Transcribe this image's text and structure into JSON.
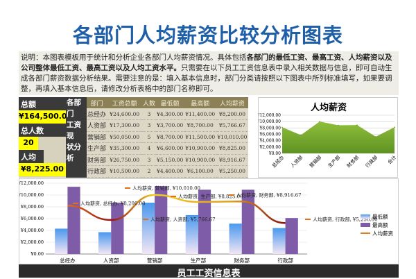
{
  "title": "各部门人均薪资比较分析图表",
  "description": {
    "p1": "说明：本图表模板用于统计和分析企业各部门人均薪资情况。具体包括",
    "b1": "各部门的最低工资、最高工资、人均薪资以及公司整体最低工资、最高工资以及人均工资水平。",
    "p2": "只需要在以下员工工资信息表中录入相关数据与信息，即可自动生成各部门薪资数据分析结果。需要注意的是：填入基本信息时，部门分类请按照以下图表中所列标准填写，如果要调整，再填入基本信息后，请修改分析表格中的部门名称即可。"
  },
  "summary": {
    "total_label": "总额",
    "total_value": "¥164,500.00",
    "count_label": "总人数",
    "count_value": "20",
    "avg_label": "人均",
    "avg_value": "¥8,225.00"
  },
  "side_label": [
    "各部门",
    "工资现",
    "状分析"
  ],
  "table": {
    "headers": [
      "部门",
      "工资总额",
      "人数",
      "最低额",
      "最高额",
      "人均薪资"
    ],
    "rows": [
      [
        "总经办",
        "¥24,600.00",
        "3",
        "¥4,300.00",
        "¥11,400.00",
        "¥8,200.00"
      ],
      [
        "人资部",
        "¥17,300.00",
        "3",
        "¥3,700.00",
        "¥8,700.00",
        "¥5,766.67"
      ],
      [
        "营销部",
        "¥50,050.00",
        "5",
        "¥8,700.00",
        "¥11,500.00",
        "¥10,010.00"
      ],
      [
        "生产部",
        "¥35,300.00",
        "4",
        "¥6,600.00",
        "¥10,900.00",
        "¥8,825.00"
      ],
      [
        "财务部",
        "¥26,750.00",
        "3",
        "¥5,150.00",
        "¥10,900.00",
        "¥8,916.67"
      ],
      [
        "行政部",
        "¥10,500.00",
        "2",
        "¥4,400.00",
        "¥6,100.00",
        "¥5,250.00"
      ],
      [
        "合计",
        "¥164,500.00",
        "20",
        "¥3,700.00",
        "¥11,500.00",
        "¥8,225.00"
      ]
    ]
  },
  "footer": "员工工资信息表",
  "chart_data": [
    {
      "type": "area",
      "title": "人均薪资",
      "categories": [
        "总经办",
        "人资部",
        "营销部",
        "生产部",
        "财务部",
        "行政部",
        "合计"
      ],
      "values": [
        8200,
        5766.67,
        10010,
        8825,
        8916.67,
        5250,
        8225
      ],
      "ylim": [
        0,
        12000
      ],
      "yticks": [
        "¥0.00",
        "¥2,000.00",
        "¥4,000.00",
        "¥6,000.00",
        "¥8,000.00",
        "¥10,000.00",
        "¥12,000.00"
      ],
      "grid": true,
      "color": "#7cae2e"
    },
    {
      "type": "bar+line",
      "categories": [
        "总经办",
        "人资部",
        "营销部",
        "生产部",
        "财务部",
        "行政部"
      ],
      "ylim": [
        0,
        12000
      ],
      "yticks": [
        "¥0.00",
        "¥2,000.00",
        "¥4,000.00",
        "¥6,000.00",
        "¥8,000.00",
        "¥10,000.00",
        "¥12,000.00"
      ],
      "grid": true,
      "legend": "right",
      "series": [
        {
          "name": "最低额",
          "type": "bar",
          "values": [
            4300,
            3700,
            8700,
            6600,
            5150,
            4400
          ],
          "color": "#5aa2ee"
        },
        {
          "name": "最高额",
          "type": "bar",
          "values": [
            11400,
            8700,
            11500,
            10900,
            10900,
            6100
          ],
          "color": "#7e5ca8"
        },
        {
          "name": "人均薪资",
          "type": "line",
          "values": [
            8200,
            5766.67,
            10010,
            8825,
            8916.67,
            5250
          ],
          "color": "#e07b20"
        }
      ],
      "data_labels": [
        "人均薪资, 总经办, ¥8,200.00",
        "人均薪资, 人资部, ¥5,766.67",
        "人均薪资, 营销部, ¥10,010.00",
        "人均薪资, 生产部, ¥8,825.00",
        "人均薪资, 财务部, ¥8,916.67",
        "人均薪资, 行政部, ¥5,250.00"
      ]
    }
  ]
}
